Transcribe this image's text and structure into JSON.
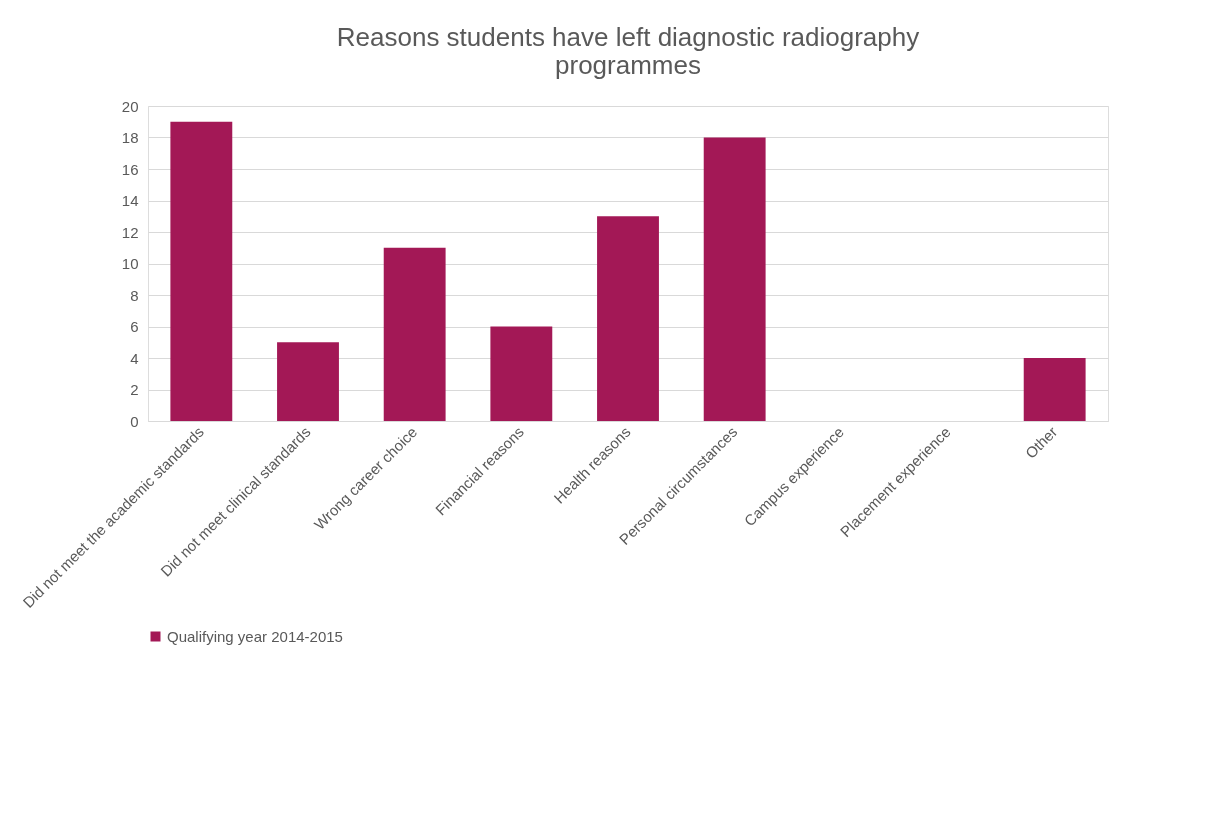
{
  "chart_data": {
    "type": "bar",
    "title": "Reasons students have left diagnostic radiography programmes",
    "categories": [
      "Did not meet the academic standards",
      "Did not meet clinical standards",
      "Wrong career choice",
      "Financial reasons",
      "Health reasons",
      "Personal circumstances",
      "Campus experience",
      "Placement experience",
      "Other"
    ],
    "series": [
      {
        "name": "Qualifying year 2014-2015",
        "color": "#a31856",
        "values": [
          19,
          5,
          11,
          6,
          13,
          18,
          0,
          0,
          4
        ]
      }
    ],
    "ylim": [
      0,
      20
    ],
    "yticks": [
      0,
      2,
      4,
      6,
      8,
      10,
      12,
      14,
      16,
      18,
      20
    ],
    "grid": "y",
    "legend": "bottom"
  }
}
